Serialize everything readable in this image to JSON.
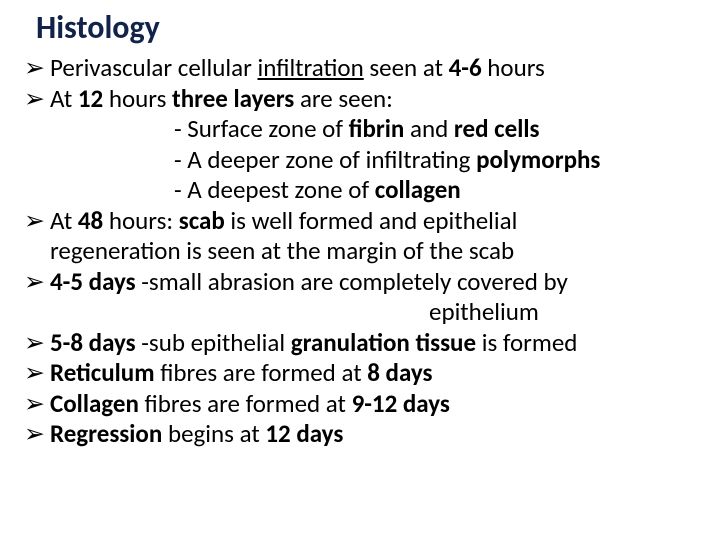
{
  "title": "Histology",
  "lines": {
    "l1a": "Perivascular cellular ",
    "l1b": "infiltration",
    "l1c": " seen at ",
    "l1d": "4-6",
    "l1e": " hours",
    "l2a": "At ",
    "l2b": "12",
    "l2c": " hours ",
    "l2d": "three layers ",
    "l2e": "are seen:",
    "l3a": "- Surface zone of ",
    "l3b": "fibrin ",
    "l3c": "and ",
    "l3d": "red cells",
    "l4a": "- A deeper zone of infiltrating ",
    "l4b": "polymorphs",
    "l5a": "- A deepest zone of ",
    "l5b": "collagen",
    "l6a": "At ",
    "l6b": "48",
    "l6c": " hours: ",
    "l6d": "scab ",
    "l6e": "is well formed and epithelial",
    "l6f": "regeneration is seen at the margin of the scab",
    "l7a": "4-5 days ",
    "l7b": "-small abrasion are completely covered by",
    "l7c": "epithelium",
    "l8a": "5-8 days ",
    "l8b": "-sub epithelial ",
    "l8c": "granulation tissue ",
    "l8d": "is formed",
    "l9a": "Reticulum ",
    "l9b": "fibres are formed at ",
    "l9c": "8 days",
    "l10a": "Collagen ",
    "l10b": "fibres are formed at ",
    "l10c": "9-12 days",
    "l11a": "Regression ",
    "l11b": "begins at ",
    "l11c": "12 days"
  },
  "style": {
    "title_color": "#12234a",
    "text_color": "#000000",
    "background": "#ffffff",
    "title_fontsize": 32,
    "body_fontsize": 25,
    "arrow_glyph": "➢"
  }
}
